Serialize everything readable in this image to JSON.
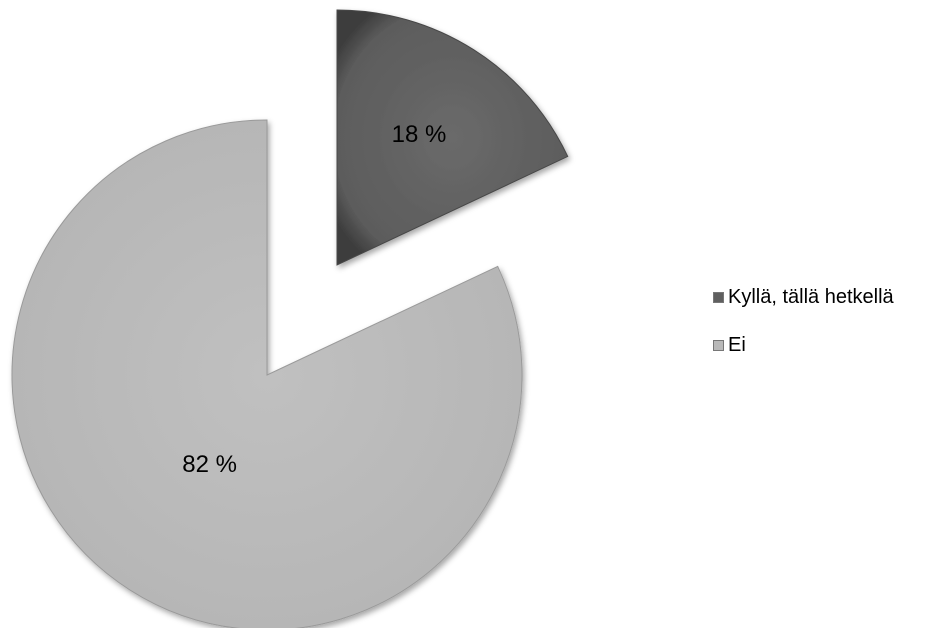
{
  "chart_data": {
    "type": "pie",
    "style": "exploded-3d",
    "categories": [
      "Kyllä, tällä hetkellä",
      "Ei"
    ],
    "values": [
      18,
      82
    ],
    "labels": [
      "18 %",
      "82 %"
    ],
    "colors": [
      "#5f5f5f",
      "#b9b9b9"
    ],
    "legend_position": "right"
  },
  "legend": {
    "items": [
      {
        "label": "Kyllä, tällä hetkellä",
        "color": "#5f5f5f"
      },
      {
        "label": "Ei",
        "color": "#b9b9b9"
      }
    ]
  }
}
